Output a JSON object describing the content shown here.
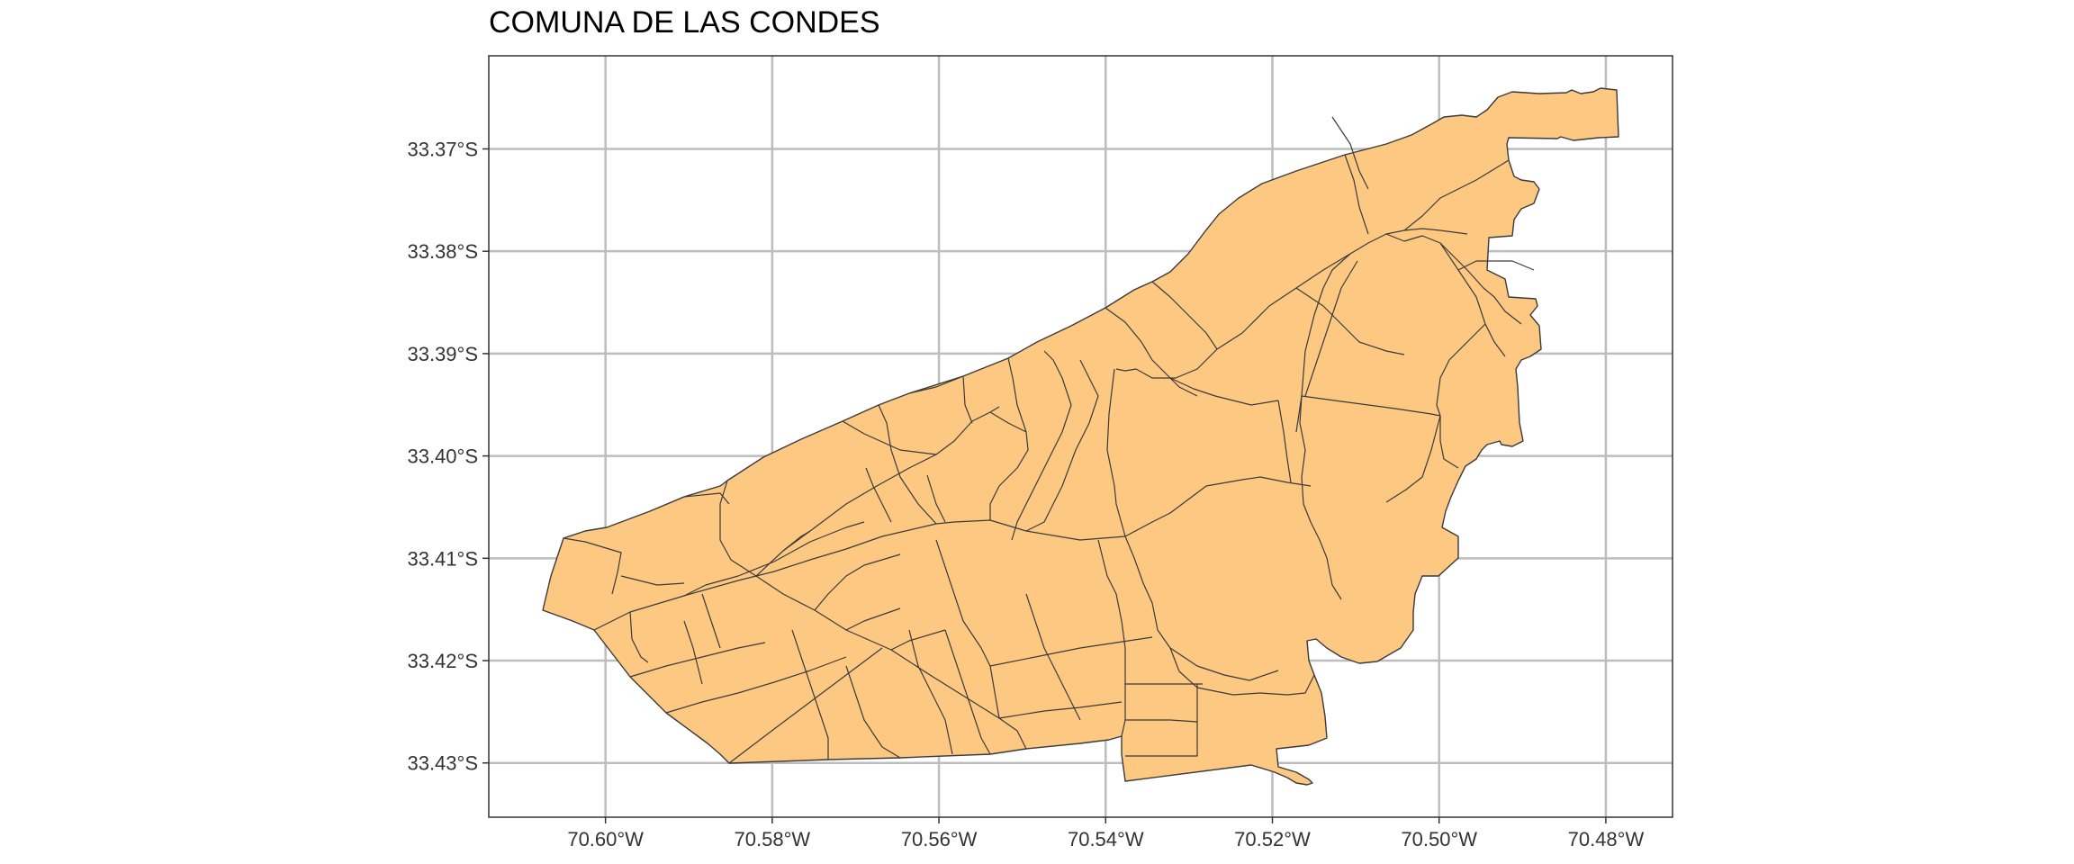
{
  "title": "COMUNA DE LAS CONDES",
  "map": {
    "fill_color": "#FDC882",
    "border_color": "#3A3A3A",
    "grid_color": "#BDBDBD",
    "grid": true,
    "x_axis": {
      "ticks": [
        -70.6,
        -70.58,
        -70.56,
        -70.54,
        -70.52,
        -70.5,
        -70.48
      ],
      "labels": [
        "70.60°W",
        "70.58°W",
        "70.56°W",
        "70.54°W",
        "70.52°W",
        "70.50°W",
        "70.48°W"
      ],
      "range": [
        -70.614,
        -70.472
      ]
    },
    "y_axis": {
      "ticks": [
        -33.37,
        -33.38,
        -33.39,
        -33.4,
        -33.41,
        -33.42,
        -33.43
      ],
      "labels": [
        "33.37°S",
        "33.38°S",
        "33.39°S",
        "33.40°S",
        "33.41°S",
        "33.42°S",
        "33.43°S"
      ],
      "range": [
        -33.4353,
        -33.3609
      ]
    }
  }
}
